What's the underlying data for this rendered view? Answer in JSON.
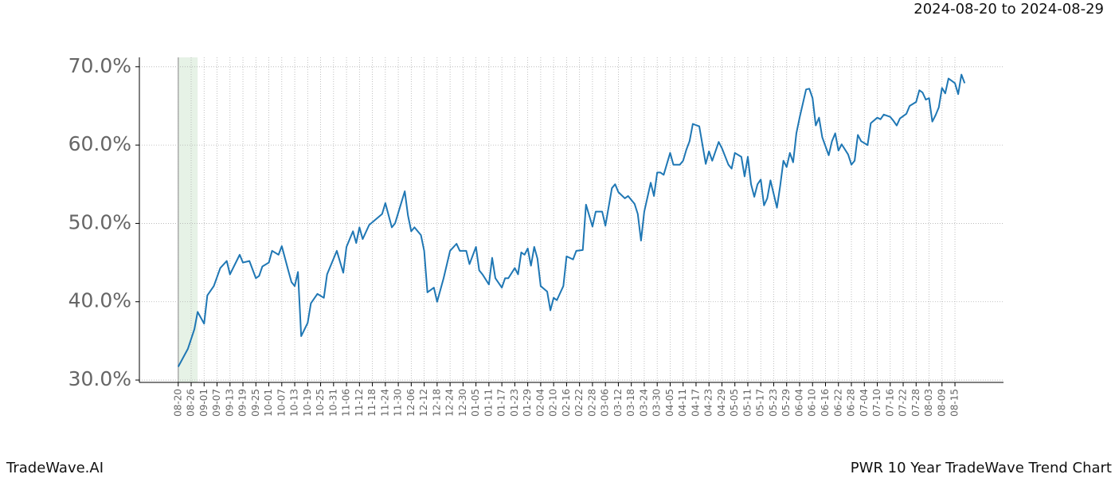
{
  "chart_data": {
    "type": "line",
    "subtitle": "2024-08-20 to 2024-08-29",
    "brand": "TradeWave.AI",
    "title": "PWR 10 Year TradeWave Trend Chart",
    "color": "#1f77b4",
    "highlight": [
      0,
      6
    ],
    "highlight_color": "#e6f2e6",
    "grid": true,
    "x": [
      0,
      3,
      5,
      6,
      8,
      9,
      11,
      13,
      15,
      16,
      19,
      20,
      22,
      24,
      25,
      26,
      28,
      29,
      31,
      32,
      34,
      35,
      36,
      37,
      38,
      40,
      41,
      43,
      45,
      46,
      49,
      51,
      52,
      54,
      55,
      56,
      57,
      59,
      61,
      63,
      64,
      66,
      67,
      70,
      71,
      72,
      73,
      75,
      76,
      77,
      79,
      80,
      82,
      84,
      86,
      87,
      89,
      90,
      92,
      93,
      94,
      96,
      97,
      98,
      100,
      101,
      102,
      104,
      105,
      106,
      107,
      108,
      109,
      110,
      111,
      112,
      114,
      115,
      116,
      117,
      119,
      120,
      122,
      123,
      125,
      126,
      128,
      129,
      131,
      132,
      134,
      135,
      136,
      138,
      139,
      141,
      142,
      143,
      144,
      146,
      147,
      148,
      149,
      150,
      152,
      153,
      155,
      156,
      157,
      158,
      159,
      161,
      163,
      164,
      165,
      167,
      168,
      170,
      171,
      172,
      174,
      175,
      176,
      177,
      178,
      179,
      180,
      181,
      182,
      183,
      185,
      186,
      187,
      188,
      189,
      190,
      191,
      192,
      194,
      195,
      196,
      197,
      198,
      199,
      201,
      202,
      203,
      204,
      205,
      207,
      208,
      209,
      210,
      211,
      213,
      214,
      216,
      217,
      218,
      220,
      221,
      222,
      223,
      225,
      226,
      228,
      229,
      230,
      231,
      232,
      233,
      234,
      235,
      236,
      237,
      238,
      239,
      240,
      241,
      242,
      243
    ],
    "values": [
      31.7,
      34,
      36.5,
      38.7,
      37.2,
      40.8,
      42,
      44.3,
      45.2,
      43.5,
      46,
      45,
      45.2,
      43,
      43.3,
      44.5,
      45,
      46.5,
      46,
      47.1,
      44,
      42.5,
      42,
      43.8,
      35.6,
      37.3,
      39.8,
      41,
      40.5,
      43.5,
      46.5,
      43.7,
      47,
      49,
      47.5,
      49.5,
      48,
      49.8,
      50.5,
      51.2,
      52.6,
      49.5,
      50,
      54.1,
      51,
      49,
      49.5,
      48.5,
      46.5,
      41.2,
      41.8,
      40,
      43,
      46.5,
      47.4,
      46.5,
      46.5,
      44.8,
      47,
      44,
      43.5,
      42.2,
      45.6,
      43,
      41.8,
      43,
      43,
      44.3,
      43.5,
      46.3,
      46,
      46.8,
      44.6,
      47,
      45.5,
      42,
      41.3,
      38.9,
      40.5,
      40.2,
      42,
      45.8,
      45.4,
      46.5,
      46.6,
      52.4,
      49.6,
      51.5,
      51.5,
      49.7,
      54.5,
      55,
      54,
      53.2,
      53.5,
      52.5,
      51.2,
      47.8,
      51.5,
      55.2,
      53.5,
      56.5,
      56.5,
      56.2,
      59,
      57.5,
      57.5,
      58,
      59.4,
      60.5,
      62.7,
      62.4,
      57.6,
      59.2,
      58,
      60.4,
      59.6,
      57.5,
      57,
      59,
      58.5,
      56,
      58.5,
      55,
      53.4,
      55,
      55.6,
      52.3,
      53.2,
      55.5,
      52,
      54.8,
      58,
      57.2,
      59,
      57.8,
      61.5,
      63.5,
      67.1,
      67.2,
      66,
      62.5,
      63.5,
      61,
      58.7,
      60.5,
      61.5,
      59.3,
      60.1,
      58.8,
      57.5,
      58,
      61.3,
      60.5,
      60,
      62.8,
      63.5,
      63.3,
      63.9,
      63.6,
      63.1,
      62.5,
      63.4,
      64,
      65,
      65.5,
      67,
      66.7,
      65.8,
      66,
      63,
      63.8,
      64.8,
      67.3,
      66.6,
      68.5,
      68.2,
      67.9,
      66.5,
      69,
      67.9
    ],
    "xlim": [
      -12,
      255
    ],
    "ylim": [
      29.7,
      71.2
    ],
    "xticks": [
      {
        "value": 0,
        "label": "08-20"
      },
      {
        "value": 4,
        "label": "08-26"
      },
      {
        "value": 8,
        "label": "09-01"
      },
      {
        "value": 12,
        "label": "09-07"
      },
      {
        "value": 16,
        "label": "09-13"
      },
      {
        "value": 20,
        "label": "09-19"
      },
      {
        "value": 24,
        "label": "09-25"
      },
      {
        "value": 28,
        "label": "10-01"
      },
      {
        "value": 32,
        "label": "10-07"
      },
      {
        "value": 36,
        "label": "10-13"
      },
      {
        "value": 40,
        "label": "10-19"
      },
      {
        "value": 44,
        "label": "10-25"
      },
      {
        "value": 48,
        "label": "10-31"
      },
      {
        "value": 52,
        "label": "11-06"
      },
      {
        "value": 56,
        "label": "11-12"
      },
      {
        "value": 60,
        "label": "11-18"
      },
      {
        "value": 64,
        "label": "11-24"
      },
      {
        "value": 68,
        "label": "11-30"
      },
      {
        "value": 72,
        "label": "12-06"
      },
      {
        "value": 76,
        "label": "12-12"
      },
      {
        "value": 80,
        "label": "12-18"
      },
      {
        "value": 84,
        "label": "12-24"
      },
      {
        "value": 88,
        "label": "12-30"
      },
      {
        "value": 92,
        "label": "01-05"
      },
      {
        "value": 96,
        "label": "01-11"
      },
      {
        "value": 100,
        "label": "01-17"
      },
      {
        "value": 104,
        "label": "01-23"
      },
      {
        "value": 108,
        "label": "01-29"
      },
      {
        "value": 112,
        "label": "02-04"
      },
      {
        "value": 116,
        "label": "02-10"
      },
      {
        "value": 120,
        "label": "02-16"
      },
      {
        "value": 124,
        "label": "02-22"
      },
      {
        "value": 128,
        "label": "02-28"
      },
      {
        "value": 132,
        "label": "03-06"
      },
      {
        "value": 136,
        "label": "03-12"
      },
      {
        "value": 140,
        "label": "03-18"
      },
      {
        "value": 144,
        "label": "03-24"
      },
      {
        "value": 148,
        "label": "03-30"
      },
      {
        "value": 152,
        "label": "04-05"
      },
      {
        "value": 156,
        "label": "04-11"
      },
      {
        "value": 160,
        "label": "04-17"
      },
      {
        "value": 164,
        "label": "04-23"
      },
      {
        "value": 168,
        "label": "04-29"
      },
      {
        "value": 172,
        "label": "05-05"
      },
      {
        "value": 176,
        "label": "05-11"
      },
      {
        "value": 180,
        "label": "05-17"
      },
      {
        "value": 184,
        "label": "05-23"
      },
      {
        "value": 188,
        "label": "05-29"
      },
      {
        "value": 192,
        "label": "06-04"
      },
      {
        "value": 196,
        "label": "06-10"
      },
      {
        "value": 200,
        "label": "06-16"
      },
      {
        "value": 204,
        "label": "06-22"
      },
      {
        "value": 208,
        "label": "06-28"
      },
      {
        "value": 212,
        "label": "07-04"
      },
      {
        "value": 216,
        "label": "07-10"
      },
      {
        "value": 220,
        "label": "07-16"
      },
      {
        "value": 224,
        "label": "07-22"
      },
      {
        "value": 228,
        "label": "07-28"
      },
      {
        "value": 232,
        "label": "08-03"
      },
      {
        "value": 236,
        "label": "08-09"
      },
      {
        "value": 240,
        "label": "08-15"
      }
    ],
    "yticks": [
      {
        "value": 30,
        "label": "30.0%"
      },
      {
        "value": 40,
        "label": "40.0%"
      },
      {
        "value": 50,
        "label": "50.0%"
      },
      {
        "value": 60,
        "label": "60.0%"
      },
      {
        "value": 70,
        "label": "70.0%"
      }
    ]
  }
}
